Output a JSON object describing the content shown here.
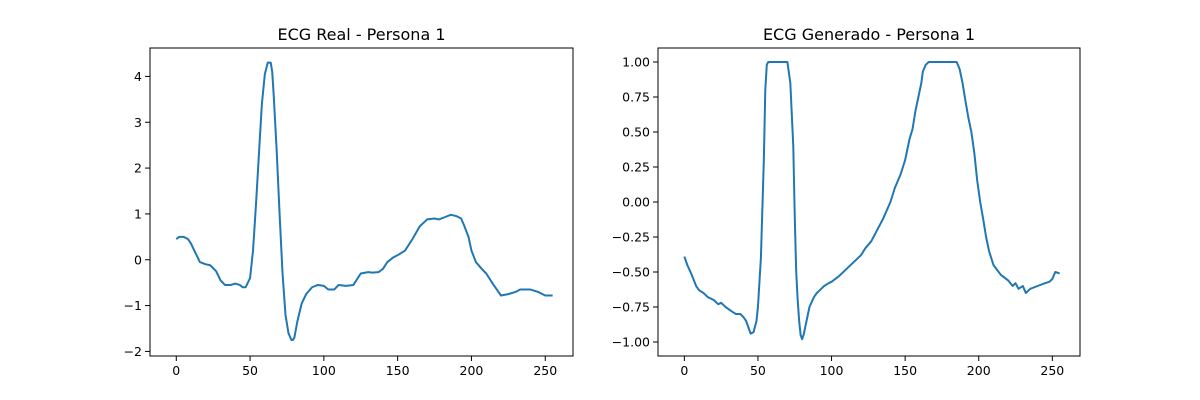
{
  "chart_data": [
    {
      "type": "line",
      "title": "ECG Real - Persona 1",
      "xlabel": "",
      "ylabel": "",
      "xlim": [
        -17.8,
        268.8
      ],
      "ylim": [
        -2.1,
        4.62
      ],
      "x_ticks": [
        0,
        50,
        100,
        150,
        200,
        250
      ],
      "x_tick_labels": [
        "0",
        "50",
        "100",
        "150",
        "200",
        "250"
      ],
      "y_ticks": [
        -2,
        -1,
        0,
        1,
        2,
        3,
        4
      ],
      "y_tick_labels": [
        "−2",
        "−1",
        "0",
        "1",
        "2",
        "3",
        "4"
      ],
      "grid": false,
      "legend": "none",
      "line_color": "#1f77b4",
      "series": [
        {
          "x": [
            0,
            2,
            5,
            8,
            10,
            13,
            16,
            20,
            23,
            27,
            30,
            33,
            37,
            40,
            43,
            45,
            47,
            50,
            52,
            54,
            56,
            58,
            60,
            62,
            64,
            65,
            66,
            68,
            70,
            72,
            74,
            76,
            78,
            79,
            80,
            82,
            85,
            88,
            92,
            96,
            100,
            103,
            107,
            110,
            115,
            120,
            125,
            130,
            133,
            137,
            140,
            143,
            147,
            150,
            155,
            160,
            165,
            170,
            175,
            178,
            182,
            186,
            190,
            193,
            195,
            198,
            200,
            203,
            207,
            210,
            215,
            220,
            225,
            230,
            233,
            237,
            240,
            245,
            250,
            253,
            255
          ],
          "y": [
            0.45,
            0.5,
            0.5,
            0.45,
            0.35,
            0.15,
            -0.05,
            -0.1,
            -0.12,
            -0.25,
            -0.45,
            -0.55,
            -0.55,
            -0.52,
            -0.55,
            -0.6,
            -0.6,
            -0.4,
            0.2,
            1.2,
            2.3,
            3.4,
            4.05,
            4.3,
            4.3,
            4.1,
            3.6,
            2.4,
            1.0,
            -0.3,
            -1.2,
            -1.6,
            -1.75,
            -1.75,
            -1.7,
            -1.35,
            -0.95,
            -0.75,
            -0.6,
            -0.55,
            -0.57,
            -0.65,
            -0.65,
            -0.55,
            -0.57,
            -0.55,
            -0.3,
            -0.27,
            -0.28,
            -0.27,
            -0.2,
            -0.05,
            0.05,
            0.1,
            0.2,
            0.45,
            0.73,
            0.88,
            0.9,
            0.88,
            0.93,
            0.98,
            0.95,
            0.9,
            0.75,
            0.5,
            0.2,
            -0.05,
            -0.2,
            -0.3,
            -0.55,
            -0.78,
            -0.75,
            -0.7,
            -0.65,
            -0.65,
            -0.65,
            -0.7,
            -0.78,
            -0.78,
            -0.78
          ]
        }
      ]
    },
    {
      "type": "line",
      "title": "ECG Generado - Persona 1",
      "xlabel": "",
      "ylabel": "",
      "xlim": [
        -17.9,
        268.8
      ],
      "ylim": [
        -1.1,
        1.1
      ],
      "x_ticks": [
        0,
        50,
        100,
        150,
        200,
        250
      ],
      "x_tick_labels": [
        "0",
        "50",
        "100",
        "150",
        "200",
        "250"
      ],
      "y_ticks": [
        -1.0,
        -0.75,
        -0.5,
        -0.25,
        0.0,
        0.25,
        0.5,
        0.75,
        1.0
      ],
      "y_tick_labels": [
        "−1.00",
        "−0.75",
        "−0.50",
        "−0.25",
        "0.00",
        "0.25",
        "0.50",
        "0.75",
        "1.00"
      ],
      "grid": false,
      "legend": "none",
      "line_color": "#1f77b4",
      "series": [
        {
          "x": [
            0,
            2,
            5,
            8,
            10,
            13,
            16,
            20,
            23,
            25,
            28,
            32,
            35,
            38,
            40,
            42,
            45,
            47,
            49,
            50,
            52,
            54,
            55,
            56,
            57,
            58,
            60,
            62,
            65,
            70,
            72,
            74,
            75,
            76,
            77,
            78,
            79,
            80,
            81,
            83,
            85,
            88,
            90,
            93,
            95,
            98,
            100,
            105,
            110,
            115,
            120,
            123,
            127,
            130,
            135,
            140,
            143,
            147,
            150,
            153,
            155,
            157,
            159,
            161,
            162,
            164,
            166,
            168,
            170,
            175,
            180,
            185,
            187,
            189,
            191,
            193,
            195,
            197,
            199,
            201,
            203,
            205,
            207,
            210,
            215,
            220,
            223,
            225,
            227,
            230,
            232,
            235,
            240,
            245,
            248,
            250,
            252,
            255
          ],
          "y": [
            -0.39,
            -0.45,
            -0.52,
            -0.6,
            -0.63,
            -0.65,
            -0.68,
            -0.7,
            -0.73,
            -0.72,
            -0.75,
            -0.78,
            -0.8,
            -0.8,
            -0.82,
            -0.85,
            -0.94,
            -0.93,
            -0.85,
            -0.75,
            -0.4,
            0.3,
            0.8,
            0.98,
            1.0,
            1.0,
            1.0,
            1.0,
            1.0,
            1.0,
            0.85,
            0.4,
            -0.1,
            -0.5,
            -0.7,
            -0.85,
            -0.95,
            -0.98,
            -0.95,
            -0.85,
            -0.75,
            -0.68,
            -0.65,
            -0.62,
            -0.6,
            -0.58,
            -0.57,
            -0.53,
            -0.48,
            -0.43,
            -0.38,
            -0.33,
            -0.28,
            -0.22,
            -0.12,
            0.0,
            0.1,
            0.2,
            0.3,
            0.45,
            0.52,
            0.65,
            0.75,
            0.85,
            0.93,
            0.98,
            1.0,
            1.0,
            1.0,
            1.0,
            1.0,
            1.0,
            0.95,
            0.85,
            0.72,
            0.6,
            0.5,
            0.35,
            0.15,
            0.0,
            -0.12,
            -0.25,
            -0.35,
            -0.45,
            -0.52,
            -0.56,
            -0.6,
            -0.58,
            -0.62,
            -0.6,
            -0.65,
            -0.62,
            -0.6,
            -0.58,
            -0.57,
            -0.55,
            -0.5,
            -0.51
          ]
        }
      ]
    }
  ]
}
